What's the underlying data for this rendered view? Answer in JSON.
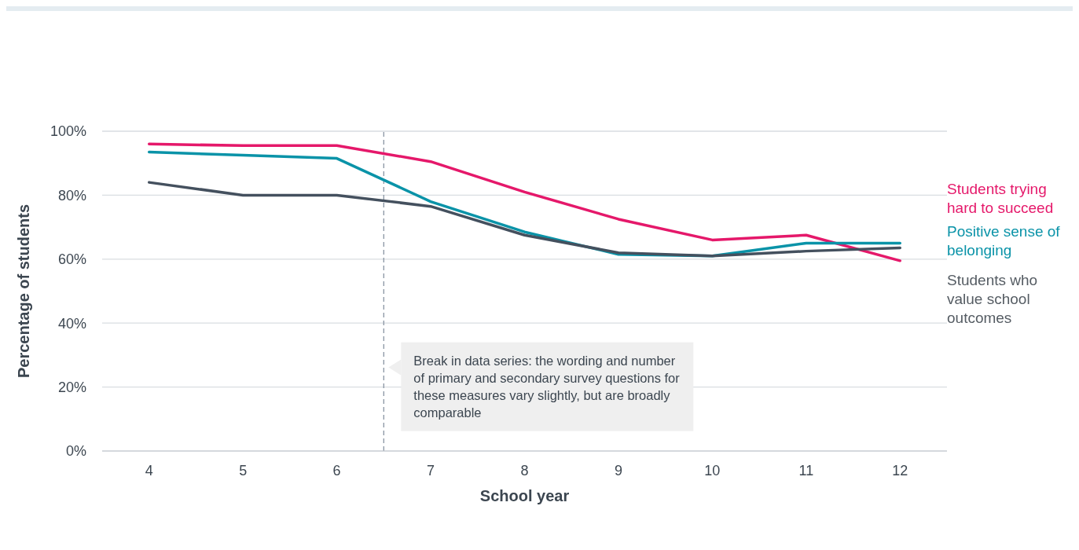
{
  "chart_data": {
    "type": "line",
    "xlabel": "School year",
    "ylabel": "Percentage of students",
    "x": [
      4,
      5,
      6,
      7,
      8,
      9,
      10,
      11,
      12
    ],
    "xlim": [
      3.5,
      12.5
    ],
    "xticks": [
      4,
      5,
      6,
      7,
      8,
      9,
      10,
      11,
      12
    ],
    "ylim": [
      0,
      100
    ],
    "yticks": [
      {
        "value": 0,
        "label": "0%"
      },
      {
        "value": 20,
        "label": "20%"
      },
      {
        "value": 40,
        "label": "40%"
      },
      {
        "value": 60,
        "label": "60%"
      },
      {
        "value": 80,
        "label": "80%"
      },
      {
        "value": 100,
        "label": "100%"
      }
    ],
    "grid": "y",
    "legend": "right",
    "marker": "none",
    "line_style": "solid",
    "series": [
      {
        "name": "Students trying hard to succeed",
        "color": "#e5186a",
        "values": [
          96,
          95.5,
          95.5,
          90.5,
          81,
          72.5,
          66,
          67.5,
          59.5
        ]
      },
      {
        "name": "Positive sense of belonging",
        "color": "#0a93a8",
        "values": [
          93.5,
          92.5,
          91.5,
          78,
          68.5,
          61.5,
          61,
          65,
          65
        ]
      },
      {
        "name": "Students who value school outcomes",
        "color": "#44505e",
        "values": [
          84,
          80,
          80,
          76.5,
          67.5,
          62,
          61,
          62.5,
          63.5
        ]
      }
    ],
    "ref_lines": [
      {
        "axis": "x",
        "value": 6.5,
        "label": "Break in data series: the wording and number of primary and secondary survey questions for these measures vary slightly, but are broadly comparable",
        "color": "#8a95a3",
        "line_style": "dashed"
      }
    ]
  }
}
